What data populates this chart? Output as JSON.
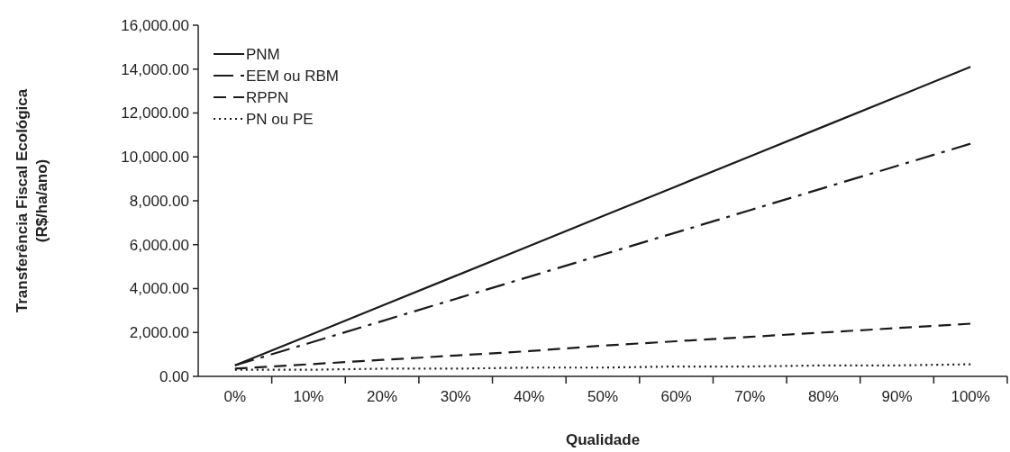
{
  "chart_data": {
    "type": "line",
    "xlabel": "Qualidade",
    "ylabel": "Transferência Fiscal Ecológica\n(R$/ha/ano)",
    "categories": [
      "0%",
      "10%",
      "20%",
      "30%",
      "40%",
      "50%",
      "60%",
      "70%",
      "80%",
      "90%",
      "100%"
    ],
    "series": [
      {
        "name": "PNM",
        "color": "#1a1a1a",
        "line_style": "solid",
        "values": [
          500,
          1860,
          3220,
          4580,
          5940,
          7300,
          8660,
          10020,
          11380,
          12740,
          14100
        ]
      },
      {
        "name": "EEM ou RBM",
        "color": "#1a1a1a",
        "line_style": "dashdot",
        "values": [
          500,
          1510,
          2520,
          3530,
          4540,
          5550,
          6560,
          7570,
          8580,
          9590,
          10600
        ]
      },
      {
        "name": "RPPN",
        "color": "#1a1a1a",
        "line_style": "dashed",
        "values": [
          350,
          550,
          750,
          950,
          1150,
          1400,
          1600,
          1800,
          2000,
          2200,
          2400
        ]
      },
      {
        "name": "PN ou PE",
        "color": "#1a1a1a",
        "line_style": "dotted",
        "values": [
          300,
          300,
          350,
          350,
          400,
          400,
          450,
          450,
          500,
          500,
          550
        ]
      }
    ],
    "ylim": [
      0,
      16000
    ],
    "yticks": [
      {
        "value": 0,
        "label": "0.00"
      },
      {
        "value": 2000,
        "label": "2,000.00"
      },
      {
        "value": 4000,
        "label": "4,000.00"
      },
      {
        "value": 6000,
        "label": "6,000.00"
      },
      {
        "value": 8000,
        "label": "8,000.00"
      },
      {
        "value": 10000,
        "label": "10,000.00"
      },
      {
        "value": 12000,
        "label": "12,000.00"
      },
      {
        "value": 14000,
        "label": "14,000.00"
      },
      {
        "value": 16000,
        "label": "16,000.00"
      }
    ],
    "grid": false,
    "legend": "top left",
    "marker": "none"
  }
}
